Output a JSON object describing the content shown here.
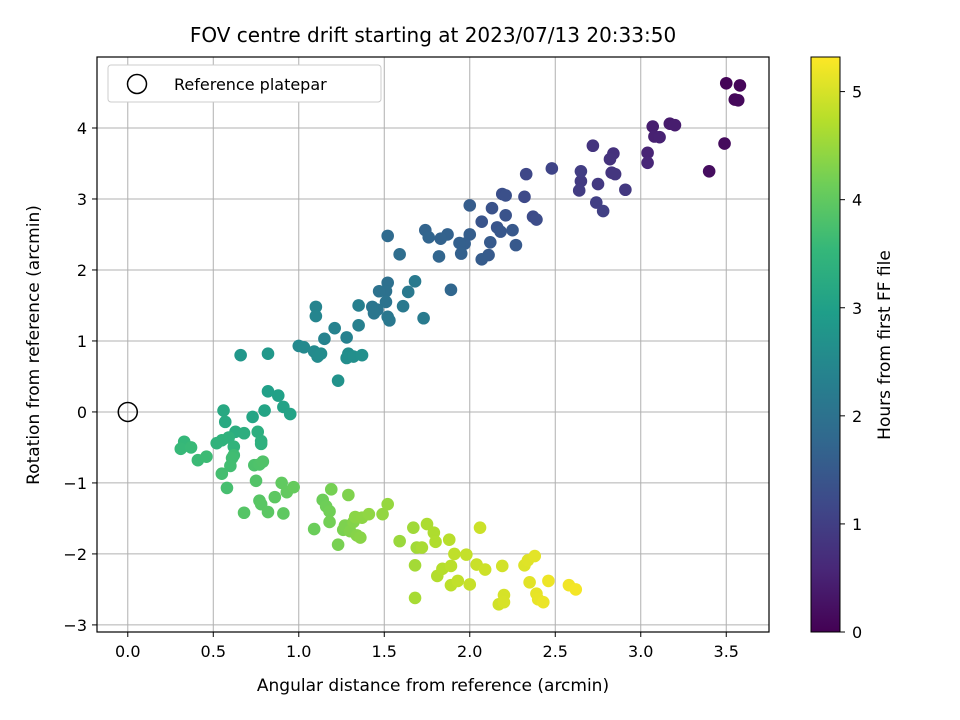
{
  "chart_data": {
    "type": "scatter",
    "title": "FOV centre drift starting at 2023/07/13 20:33:50",
    "xlabel": "Angular distance from reference (arcmin)",
    "ylabel": "Rotation from reference (arcmin)",
    "xlim": [
      -0.18,
      3.75
    ],
    "ylim": [
      -3.1,
      5.0
    ],
    "xticks": [
      0.0,
      0.5,
      1.0,
      1.5,
      2.0,
      2.5,
      3.0,
      3.5
    ],
    "xtick_labels": [
      "0.0",
      "0.5",
      "1.0",
      "1.5",
      "2.0",
      "2.5",
      "3.0",
      "3.5"
    ],
    "yticks": [
      -3,
      -2,
      -1,
      0,
      1,
      2,
      3,
      4
    ],
    "ytick_labels": [
      "−3",
      "−2",
      "−1",
      "0",
      "1",
      "2",
      "3",
      "4"
    ],
    "grid": true,
    "legend": {
      "position": "top-left",
      "entries": [
        "Reference platepar"
      ]
    },
    "reference_point": {
      "x": 0.0,
      "y": 0.0,
      "label": "Reference platepar"
    },
    "colorbar": {
      "label": "Hours from first FF file",
      "colormap": "viridis",
      "range": [
        0,
        5.32
      ],
      "ticks": [
        0,
        1,
        2,
        3,
        4,
        5
      ],
      "tick_labels": [
        "0",
        "1",
        "2",
        "3",
        "4",
        "5"
      ]
    },
    "colormap_stops": [
      "#440154",
      "#482878",
      "#3e4989",
      "#31688e",
      "#26828e",
      "#1f9e89",
      "#35b779",
      "#6ece58",
      "#b5de2b",
      "#fde725"
    ],
    "points": [
      {
        "x": 3.5,
        "y": 4.63,
        "c": 0.05
      },
      {
        "x": 3.58,
        "y": 4.6,
        "c": 0.08
      },
      {
        "x": 3.55,
        "y": 4.4,
        "c": 0.1
      },
      {
        "x": 3.57,
        "y": 4.39,
        "c": 0.12
      },
      {
        "x": 3.49,
        "y": 3.78,
        "c": 0.15
      },
      {
        "x": 3.4,
        "y": 3.39,
        "c": 0.18
      },
      {
        "x": 3.17,
        "y": 4.06,
        "c": 0.4
      },
      {
        "x": 3.2,
        "y": 4.04,
        "c": 0.42
      },
      {
        "x": 3.07,
        "y": 4.02,
        "c": 0.45
      },
      {
        "x": 3.08,
        "y": 3.88,
        "c": 0.48
      },
      {
        "x": 3.11,
        "y": 3.87,
        "c": 0.5
      },
      {
        "x": 3.04,
        "y": 3.65,
        "c": 0.55
      },
      {
        "x": 3.04,
        "y": 3.51,
        "c": 0.58
      },
      {
        "x": 2.84,
        "y": 3.64,
        "c": 0.75
      },
      {
        "x": 2.82,
        "y": 3.56,
        "c": 0.78
      },
      {
        "x": 2.72,
        "y": 3.75,
        "c": 0.8
      },
      {
        "x": 2.83,
        "y": 3.37,
        "c": 0.82
      },
      {
        "x": 2.85,
        "y": 3.35,
        "c": 0.85
      },
      {
        "x": 2.91,
        "y": 3.13,
        "c": 0.88
      },
      {
        "x": 2.75,
        "y": 3.21,
        "c": 0.9
      },
      {
        "x": 2.65,
        "y": 3.25,
        "c": 0.92
      },
      {
        "x": 2.64,
        "y": 3.12,
        "c": 0.95
      },
      {
        "x": 2.65,
        "y": 3.39,
        "c": 0.97
      },
      {
        "x": 2.74,
        "y": 2.95,
        "c": 1.0
      },
      {
        "x": 2.78,
        "y": 2.83,
        "c": 1.02
      },
      {
        "x": 2.48,
        "y": 3.43,
        "c": 1.1
      },
      {
        "x": 2.33,
        "y": 3.35,
        "c": 1.15
      },
      {
        "x": 2.32,
        "y": 3.03,
        "c": 1.2
      },
      {
        "x": 2.37,
        "y": 2.75,
        "c": 1.22
      },
      {
        "x": 2.39,
        "y": 2.71,
        "c": 1.25
      },
      {
        "x": 2.19,
        "y": 3.07,
        "c": 1.3
      },
      {
        "x": 2.21,
        "y": 3.05,
        "c": 1.32
      },
      {
        "x": 2.13,
        "y": 2.87,
        "c": 1.35
      },
      {
        "x": 2.21,
        "y": 2.77,
        "c": 1.37
      },
      {
        "x": 2.07,
        "y": 2.68,
        "c": 1.4
      },
      {
        "x": 2.16,
        "y": 2.6,
        "c": 1.42
      },
      {
        "x": 2.18,
        "y": 2.54,
        "c": 1.44
      },
      {
        "x": 2.25,
        "y": 2.56,
        "c": 1.46
      },
      {
        "x": 2.27,
        "y": 2.35,
        "c": 1.48
      },
      {
        "x": 2.12,
        "y": 2.39,
        "c": 1.5
      },
      {
        "x": 2.11,
        "y": 2.21,
        "c": 1.52
      },
      {
        "x": 2.07,
        "y": 2.15,
        "c": 1.54
      },
      {
        "x": 2.0,
        "y": 2.91,
        "c": 1.56
      },
      {
        "x": 2.0,
        "y": 2.5,
        "c": 1.58
      },
      {
        "x": 1.97,
        "y": 2.37,
        "c": 1.6
      },
      {
        "x": 1.94,
        "y": 2.38,
        "c": 1.62
      },
      {
        "x": 1.95,
        "y": 2.23,
        "c": 1.64
      },
      {
        "x": 1.87,
        "y": 2.5,
        "c": 1.66
      },
      {
        "x": 1.83,
        "y": 2.44,
        "c": 1.68
      },
      {
        "x": 1.74,
        "y": 2.56,
        "c": 1.7
      },
      {
        "x": 1.76,
        "y": 2.46,
        "c": 1.72
      },
      {
        "x": 1.82,
        "y": 2.19,
        "c": 1.74
      },
      {
        "x": 1.89,
        "y": 1.72,
        "c": 1.76
      },
      {
        "x": 1.59,
        "y": 2.22,
        "c": 1.9
      },
      {
        "x": 1.52,
        "y": 2.48,
        "c": 1.85
      },
      {
        "x": 1.52,
        "y": 1.82,
        "c": 1.95
      },
      {
        "x": 1.51,
        "y": 1.7,
        "c": 1.97
      },
      {
        "x": 1.47,
        "y": 1.7,
        "c": 2.0
      },
      {
        "x": 1.51,
        "y": 1.55,
        "c": 2.02
      },
      {
        "x": 1.46,
        "y": 1.44,
        "c": 2.05
      },
      {
        "x": 1.43,
        "y": 1.48,
        "c": 2.07
      },
      {
        "x": 1.44,
        "y": 1.39,
        "c": 2.09
      },
      {
        "x": 1.52,
        "y": 1.34,
        "c": 2.11
      },
      {
        "x": 1.53,
        "y": 1.29,
        "c": 2.13
      },
      {
        "x": 1.61,
        "y": 1.49,
        "c": 2.15
      },
      {
        "x": 1.64,
        "y": 1.69,
        "c": 2.17
      },
      {
        "x": 1.68,
        "y": 1.84,
        "c": 2.19
      },
      {
        "x": 1.73,
        "y": 1.32,
        "c": 2.21
      },
      {
        "x": 1.35,
        "y": 1.5,
        "c": 2.3
      },
      {
        "x": 1.35,
        "y": 1.22,
        "c": 2.32
      },
      {
        "x": 1.28,
        "y": 1.05,
        "c": 2.34
      },
      {
        "x": 1.21,
        "y": 1.18,
        "c": 2.36
      },
      {
        "x": 1.15,
        "y": 1.03,
        "c": 2.38
      },
      {
        "x": 1.1,
        "y": 1.48,
        "c": 2.4
      },
      {
        "x": 1.1,
        "y": 1.35,
        "c": 2.42
      },
      {
        "x": 1.0,
        "y": 0.93,
        "c": 2.5
      },
      {
        "x": 1.03,
        "y": 0.91,
        "c": 2.52
      },
      {
        "x": 1.09,
        "y": 0.85,
        "c": 2.54
      },
      {
        "x": 1.11,
        "y": 0.78,
        "c": 2.56
      },
      {
        "x": 1.13,
        "y": 0.82,
        "c": 2.58
      },
      {
        "x": 1.29,
        "y": 0.82,
        "c": 2.6
      },
      {
        "x": 1.28,
        "y": 0.76,
        "c": 2.62
      },
      {
        "x": 1.32,
        "y": 0.78,
        "c": 2.64
      },
      {
        "x": 1.37,
        "y": 0.8,
        "c": 2.66
      },
      {
        "x": 1.23,
        "y": 0.44,
        "c": 2.7
      },
      {
        "x": 0.66,
        "y": 0.8,
        "c": 2.8
      },
      {
        "x": 0.82,
        "y": 0.82,
        "c": 2.82
      },
      {
        "x": 0.82,
        "y": 0.29,
        "c": 3.0
      },
      {
        "x": 0.88,
        "y": 0.23,
        "c": 3.02
      },
      {
        "x": 0.91,
        "y": 0.07,
        "c": 3.05
      },
      {
        "x": 0.95,
        "y": -0.03,
        "c": 3.07
      },
      {
        "x": 0.8,
        "y": 0.02,
        "c": 3.1
      },
      {
        "x": 0.73,
        "y": -0.07,
        "c": 3.12
      },
      {
        "x": 0.56,
        "y": 0.02,
        "c": 3.2
      },
      {
        "x": 0.57,
        "y": -0.14,
        "c": 3.22
      },
      {
        "x": 0.63,
        "y": -0.28,
        "c": 3.3
      },
      {
        "x": 0.68,
        "y": -0.3,
        "c": 3.32
      },
      {
        "x": 0.76,
        "y": -0.28,
        "c": 3.34
      },
      {
        "x": 0.78,
        "y": -0.41,
        "c": 3.36
      },
      {
        "x": 0.78,
        "y": -0.45,
        "c": 3.38
      },
      {
        "x": 0.59,
        "y": -0.36,
        "c": 3.4
      },
      {
        "x": 0.55,
        "y": -0.4,
        "c": 3.42
      },
      {
        "x": 0.52,
        "y": -0.44,
        "c": 3.44
      },
      {
        "x": 0.62,
        "y": -0.49,
        "c": 3.46
      },
      {
        "x": 0.33,
        "y": -0.42,
        "c": 3.55
      },
      {
        "x": 0.31,
        "y": -0.52,
        "c": 3.57
      },
      {
        "x": 0.37,
        "y": -0.5,
        "c": 3.59
      },
      {
        "x": 0.41,
        "y": -0.68,
        "c": 3.61
      },
      {
        "x": 0.46,
        "y": -0.63,
        "c": 3.63
      },
      {
        "x": 0.62,
        "y": -0.61,
        "c": 3.65
      },
      {
        "x": 0.61,
        "y": -0.65,
        "c": 3.67
      },
      {
        "x": 0.6,
        "y": -0.76,
        "c": 3.69
      },
      {
        "x": 0.55,
        "y": -0.87,
        "c": 3.71
      },
      {
        "x": 0.58,
        "y": -1.07,
        "c": 3.73
      },
      {
        "x": 0.74,
        "y": -0.75,
        "c": 3.8
      },
      {
        "x": 0.77,
        "y": -0.74,
        "c": 3.82
      },
      {
        "x": 0.79,
        "y": -0.7,
        "c": 3.84
      },
      {
        "x": 0.75,
        "y": -0.97,
        "c": 3.86
      },
      {
        "x": 0.68,
        "y": -1.42,
        "c": 3.88
      },
      {
        "x": 0.77,
        "y": -1.25,
        "c": 3.9
      },
      {
        "x": 0.78,
        "y": -1.3,
        "c": 3.92
      },
      {
        "x": 0.82,
        "y": -1.41,
        "c": 3.94
      },
      {
        "x": 0.86,
        "y": -1.2,
        "c": 3.96
      },
      {
        "x": 0.91,
        "y": -1.43,
        "c": 3.98
      },
      {
        "x": 0.9,
        "y": -1.0,
        "c": 4.0
      },
      {
        "x": 0.93,
        "y": -1.13,
        "c": 4.02
      },
      {
        "x": 0.97,
        "y": -1.06,
        "c": 4.04
      },
      {
        "x": 1.09,
        "y": -1.65,
        "c": 4.1
      },
      {
        "x": 1.14,
        "y": -1.24,
        "c": 4.12
      },
      {
        "x": 1.16,
        "y": -1.33,
        "c": 4.14
      },
      {
        "x": 1.18,
        "y": -1.4,
        "c": 4.16
      },
      {
        "x": 1.18,
        "y": -1.55,
        "c": 4.18
      },
      {
        "x": 1.19,
        "y": -1.09,
        "c": 4.2
      },
      {
        "x": 1.23,
        "y": -1.87,
        "c": 4.22
      },
      {
        "x": 1.26,
        "y": -1.66,
        "c": 4.24
      },
      {
        "x": 1.27,
        "y": -1.6,
        "c": 4.26
      },
      {
        "x": 1.29,
        "y": -1.17,
        "c": 4.28
      },
      {
        "x": 1.3,
        "y": -1.68,
        "c": 4.3
      },
      {
        "x": 1.32,
        "y": -1.55,
        "c": 4.32
      },
      {
        "x": 1.34,
        "y": -1.74,
        "c": 4.34
      },
      {
        "x": 1.36,
        "y": -1.77,
        "c": 4.36
      },
      {
        "x": 1.33,
        "y": -1.48,
        "c": 4.38
      },
      {
        "x": 1.37,
        "y": -1.49,
        "c": 4.4
      },
      {
        "x": 1.41,
        "y": -1.44,
        "c": 4.42
      },
      {
        "x": 1.49,
        "y": -1.44,
        "c": 4.44
      },
      {
        "x": 1.52,
        "y": -1.3,
        "c": 4.46
      },
      {
        "x": 1.59,
        "y": -1.82,
        "c": 4.5
      },
      {
        "x": 1.67,
        "y": -1.63,
        "c": 4.55
      },
      {
        "x": 1.69,
        "y": -1.91,
        "c": 4.57
      },
      {
        "x": 1.68,
        "y": -2.16,
        "c": 4.59
      },
      {
        "x": 1.68,
        "y": -2.62,
        "c": 4.61
      },
      {
        "x": 1.72,
        "y": -1.91,
        "c": 4.63
      },
      {
        "x": 1.75,
        "y": -1.58,
        "c": 4.65
      },
      {
        "x": 1.79,
        "y": -1.7,
        "c": 4.67
      },
      {
        "x": 1.8,
        "y": -1.83,
        "c": 4.69
      },
      {
        "x": 1.81,
        "y": -2.31,
        "c": 4.71
      },
      {
        "x": 1.84,
        "y": -2.21,
        "c": 4.73
      },
      {
        "x": 1.88,
        "y": -1.8,
        "c": 4.75
      },
      {
        "x": 1.89,
        "y": -2.17,
        "c": 4.77
      },
      {
        "x": 1.89,
        "y": -2.44,
        "c": 4.79
      },
      {
        "x": 1.91,
        "y": -2.0,
        "c": 4.81
      },
      {
        "x": 1.93,
        "y": -2.38,
        "c": 4.83
      },
      {
        "x": 1.98,
        "y": -2.01,
        "c": 4.85
      },
      {
        "x": 2.0,
        "y": -2.43,
        "c": 4.87
      },
      {
        "x": 2.04,
        "y": -2.15,
        "c": 4.89
      },
      {
        "x": 2.06,
        "y": -1.63,
        "c": 4.91
      },
      {
        "x": 2.09,
        "y": -2.22,
        "c": 4.93
      },
      {
        "x": 2.17,
        "y": -2.71,
        "c": 4.95
      },
      {
        "x": 2.19,
        "y": -2.17,
        "c": 4.97
      },
      {
        "x": 2.2,
        "y": -2.58,
        "c": 4.99
      },
      {
        "x": 2.2,
        "y": -2.68,
        "c": 5.01
      },
      {
        "x": 2.32,
        "y": -2.16,
        "c": 5.05
      },
      {
        "x": 2.34,
        "y": -2.09,
        "c": 5.07
      },
      {
        "x": 2.35,
        "y": -2.4,
        "c": 5.09
      },
      {
        "x": 2.38,
        "y": -2.03,
        "c": 5.11
      },
      {
        "x": 2.39,
        "y": -2.56,
        "c": 5.13
      },
      {
        "x": 2.4,
        "y": -2.64,
        "c": 5.15
      },
      {
        "x": 2.43,
        "y": -2.68,
        "c": 5.17
      },
      {
        "x": 2.46,
        "y": -2.38,
        "c": 5.19
      },
      {
        "x": 2.58,
        "y": -2.44,
        "c": 5.22
      },
      {
        "x": 2.62,
        "y": -2.5,
        "c": 5.25
      }
    ]
  }
}
